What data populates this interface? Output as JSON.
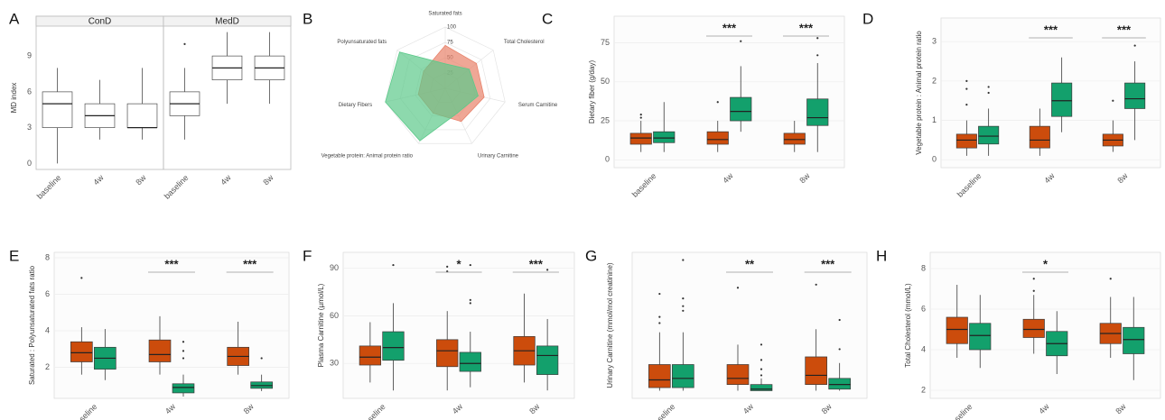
{
  "chart_data": [
    {
      "type": "faceted-box",
      "label": "A",
      "ylabel": "MD index",
      "ylim": [
        -0.5,
        11.5
      ],
      "yticks": [
        0,
        3,
        6,
        9
      ],
      "categories": [
        "baseline",
        "4w",
        "8w"
      ],
      "facets": [
        {
          "title": "ConD",
          "color": "#4d4d4d",
          "boxes": [
            {
              "low": 0,
              "q1": 3,
              "median": 5,
              "q3": 6,
              "high": 8,
              "outliers": []
            },
            {
              "low": 2,
              "q1": 3,
              "median": 4,
              "q3": 5,
              "high": 7,
              "outliers": []
            },
            {
              "low": 2,
              "q1": 3,
              "median": 3,
              "q3": 5,
              "high": 8,
              "outliers": []
            }
          ]
        },
        {
          "title": "MedD",
          "color": "#4d4d4d",
          "boxes": [
            {
              "low": 2,
              "q1": 4,
              "median": 5,
              "q3": 6,
              "high": 8,
              "outliers": [
                10
              ]
            },
            {
              "low": 5,
              "q1": 7,
              "median": 8,
              "q3": 9,
              "high": 11,
              "outliers": []
            },
            {
              "low": 5,
              "q1": 7,
              "median": 8,
              "q3": 9,
              "high": 11,
              "outliers": []
            }
          ]
        }
      ]
    },
    {
      "type": "radar",
      "label": "B",
      "rlim": [
        0,
        100
      ],
      "rticks": [
        25,
        50,
        75,
        100
      ],
      "axes": [
        "Saturated fats",
        "Total Cholesterol",
        "Serum Carnitine",
        "Urinary Carnitine",
        "Vegetable protein: Animal protein ratio",
        "Dietary Fibers",
        "Polyunsaturated fats"
      ],
      "series": [
        {
          "color": "#e8826a",
          "values": [
            70,
            65,
            65,
            60,
            45,
            45,
            45
          ]
        },
        {
          "color": "#5cc98a",
          "values": [
            40,
            50,
            55,
            45,
            95,
            100,
            95
          ]
        }
      ]
    },
    {
      "type": "box",
      "label": "C",
      "ylabel": "Dietary fiber (g/day)",
      "ylim": [
        -5,
        92
      ],
      "yticks": [
        0,
        25,
        50,
        75
      ],
      "grid": true,
      "categories": [
        "baseline",
        "4w",
        "8w"
      ],
      "significance": [
        null,
        "***",
        "***"
      ],
      "series": [
        {
          "color": "#cc4c0c",
          "boxes": [
            {
              "low": 5,
              "q1": 10,
              "median": 14,
              "q3": 17,
              "high": 25,
              "outliers": [
                27,
                29
              ]
            },
            {
              "low": 5,
              "q1": 10,
              "median": 13,
              "q3": 18,
              "high": 25,
              "outliers": [
                37
              ]
            },
            {
              "low": 5,
              "q1": 10,
              "median": 13,
              "q3": 17,
              "high": 25,
              "outliers": []
            }
          ]
        },
        {
          "color": "#13a06c",
          "boxes": [
            {
              "low": 5,
              "q1": 11,
              "median": 14,
              "q3": 18,
              "high": 37,
              "outliers": []
            },
            {
              "low": 18,
              "q1": 25,
              "median": 31,
              "q3": 40,
              "high": 60,
              "outliers": [
                76
              ]
            },
            {
              "low": 5,
              "q1": 22,
              "median": 27,
              "q3": 39,
              "high": 62,
              "outliers": [
                67,
                78
              ]
            }
          ]
        }
      ]
    },
    {
      "type": "box",
      "label": "D",
      "ylabel": "Vegetable protein : Animal protein ratio",
      "ylim": [
        -0.2,
        3.6
      ],
      "yticks": [
        0,
        1,
        2,
        3
      ],
      "grid": true,
      "categories": [
        "baseline",
        "4w",
        "8w"
      ],
      "significance": [
        null,
        "***",
        "***"
      ],
      "series": [
        {
          "color": "#cc4c0c",
          "boxes": [
            {
              "low": 0.1,
              "q1": 0.3,
              "median": 0.5,
              "q3": 0.65,
              "high": 1.0,
              "outliers": [
                1.4,
                1.8,
                2.0
              ]
            },
            {
              "low": 0.1,
              "q1": 0.3,
              "median": 0.5,
              "q3": 0.85,
              "high": 1.3,
              "outliers": []
            },
            {
              "low": 0.2,
              "q1": 0.35,
              "median": 0.5,
              "q3": 0.65,
              "high": 1.0,
              "outliers": [
                1.5
              ]
            }
          ]
        },
        {
          "color": "#13a06c",
          "boxes": [
            {
              "low": 0.1,
              "q1": 0.4,
              "median": 0.6,
              "q3": 0.85,
              "high": 1.3,
              "outliers": [
                1.7,
                1.85
              ]
            },
            {
              "low": 0.7,
              "q1": 1.1,
              "median": 1.5,
              "q3": 1.95,
              "high": 2.6,
              "outliers": []
            },
            {
              "low": 0.5,
              "q1": 1.3,
              "median": 1.55,
              "q3": 1.95,
              "high": 2.5,
              "outliers": [
                2.9
              ]
            }
          ]
        }
      ]
    },
    {
      "type": "box",
      "label": "E",
      "ylabel": "Saturated : Polyunsaturated fats ratio",
      "ylim": [
        0.3,
        8.3
      ],
      "yticks": [
        2,
        4,
        6,
        8
      ],
      "grid": true,
      "categories": [
        "baseline",
        "4w",
        "8w"
      ],
      "significance": [
        null,
        "***",
        "***"
      ],
      "series": [
        {
          "color": "#cc4c0c",
          "boxes": [
            {
              "low": 1.6,
              "q1": 2.3,
              "median": 2.8,
              "q3": 3.4,
              "high": 4.2,
              "outliers": [
                6.9
              ]
            },
            {
              "low": 1.6,
              "q1": 2.3,
              "median": 2.7,
              "q3": 3.5,
              "high": 4.8,
              "outliers": []
            },
            {
              "low": 1.6,
              "q1": 2.1,
              "median": 2.6,
              "q3": 3.1,
              "high": 4.5,
              "outliers": []
            }
          ]
        },
        {
          "color": "#13a06c",
          "boxes": [
            {
              "low": 1.3,
              "q1": 1.9,
              "median": 2.5,
              "q3": 3.1,
              "high": 4.1,
              "outliers": []
            },
            {
              "low": 0.4,
              "q1": 0.6,
              "median": 0.9,
              "q3": 1.1,
              "high": 1.6,
              "outliers": [
                2.5,
                2.9,
                3.4
              ]
            },
            {
              "low": 0.7,
              "q1": 0.85,
              "median": 1.0,
              "q3": 1.2,
              "high": 1.6,
              "outliers": [
                2.5
              ]
            }
          ]
        }
      ]
    },
    {
      "type": "box",
      "label": "F",
      "ylabel": "Plasma Carnitine (µmol/L)",
      "ylim": [
        8,
        100
      ],
      "yticks": [
        30,
        60,
        90
      ],
      "grid": true,
      "categories": [
        "baseline",
        "4w",
        "8w"
      ],
      "significance": [
        null,
        "*",
        "***"
      ],
      "series": [
        {
          "color": "#cc4c0c",
          "boxes": [
            {
              "low": 18,
              "q1": 29,
              "median": 34,
              "q3": 41,
              "high": 56,
              "outliers": []
            },
            {
              "low": 13,
              "q1": 28,
              "median": 38,
              "q3": 45,
              "high": 63,
              "outliers": [
                88,
                91
              ]
            },
            {
              "low": 18,
              "q1": 29,
              "median": 38,
              "q3": 47,
              "high": 74,
              "outliers": []
            }
          ]
        },
        {
          "color": "#13a06c",
          "boxes": [
            {
              "low": 13,
              "q1": 32,
              "median": 40,
              "q3": 50,
              "high": 68,
              "outliers": [
                92
              ]
            },
            {
              "low": 15,
              "q1": 25,
              "median": 30,
              "q3": 37,
              "high": 50,
              "outliers": [
                68,
                70,
                92
              ]
            },
            {
              "low": 13,
              "q1": 23,
              "median": 35,
              "q3": 41,
              "high": 58,
              "outliers": [
                89
              ]
            }
          ]
        }
      ]
    },
    {
      "type": "box",
      "label": "G",
      "ylabel": "Urinary Carnitine (mmol/mol creatinine)",
      "ylim": [
        -5,
        90
      ],
      "grid": true,
      "categories": [
        "baseline",
        "4w",
        "8w"
      ],
      "significance": [
        null,
        "**",
        "***"
      ],
      "series": [
        {
          "color": "#cc4c0c",
          "boxes": [
            {
              "low": 0,
              "q1": 2,
              "median": 7,
              "q3": 17,
              "high": 38,
              "outliers": [
                44,
                48,
                63
              ]
            },
            {
              "low": 0,
              "q1": 4,
              "median": 8,
              "q3": 17,
              "high": 30,
              "outliers": [
                67
              ]
            },
            {
              "low": 0,
              "q1": 4,
              "median": 10,
              "q3": 22,
              "high": 40,
              "outliers": [
                69
              ]
            }
          ]
        },
        {
          "color": "#13a06c",
          "boxes": [
            {
              "low": 0,
              "q1": 2,
              "median": 8,
              "q3": 17,
              "high": 38,
              "outliers": [
                52,
                55,
                60,
                85
              ]
            },
            {
              "low": 0,
              "q1": 0,
              "median": 1,
              "q3": 4,
              "high": 8,
              "outliers": [
                10,
                14,
                20,
                30
              ]
            },
            {
              "low": 0,
              "q1": 1,
              "median": 4,
              "q3": 8,
              "high": 18,
              "outliers": [
                27,
                46
              ]
            }
          ]
        }
      ]
    },
    {
      "type": "box",
      "label": "H",
      "ylabel": "Total Cholesterol (mmol/L)",
      "ylim": [
        1.6,
        8.8
      ],
      "yticks": [
        2,
        4,
        6,
        8
      ],
      "grid": true,
      "categories": [
        "baseline",
        "4w",
        "8w"
      ],
      "significance": [
        null,
        "*",
        null
      ],
      "series": [
        {
          "color": "#cc4c0c",
          "boxes": [
            {
              "low": 3.6,
              "q1": 4.3,
              "median": 5.0,
              "q3": 5.6,
              "high": 7.2,
              "outliers": []
            },
            {
              "low": 3.8,
              "q1": 4.6,
              "median": 5.0,
              "q3": 5.5,
              "high": 6.7,
              "outliers": [
                6.9,
                7.5
              ]
            },
            {
              "low": 3.6,
              "q1": 4.3,
              "median": 4.8,
              "q3": 5.3,
              "high": 6.6,
              "outliers": [
                7.5
              ]
            }
          ]
        },
        {
          "color": "#13a06c",
          "boxes": [
            {
              "low": 3.1,
              "q1": 4.0,
              "median": 4.7,
              "q3": 5.3,
              "high": 6.7,
              "outliers": []
            },
            {
              "low": 2.8,
              "q1": 3.7,
              "median": 4.3,
              "q3": 4.9,
              "high": 5.9,
              "outliers": []
            },
            {
              "low": 2.5,
              "q1": 3.8,
              "median": 4.5,
              "q3": 5.1,
              "high": 6.6,
              "outliers": []
            }
          ]
        }
      ]
    }
  ]
}
